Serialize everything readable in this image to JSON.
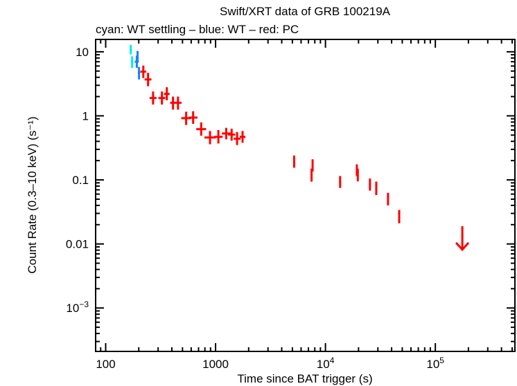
{
  "chart_data": {
    "type": "scatter",
    "title": "Swift/XRT data of GRB 100219A",
    "subtitle": "cyan: WT settling – blue: WT – red: PC",
    "xlabel": "Time since BAT trigger (s)",
    "ylabel": "Count Rate (0.3–10 keV) (s⁻¹)",
    "xscale": "log",
    "yscale": "log",
    "xlim": [
      81,
      530000
    ],
    "ylim": [
      0.00021,
      15.6
    ],
    "grid": false,
    "x_ticks": [
      {
        "value": 100,
        "label": "100"
      },
      {
        "value": 1000,
        "label": "1000"
      },
      {
        "value": 10000,
        "label": "10",
        "exp": "4"
      },
      {
        "value": 100000,
        "label": "10",
        "exp": "5"
      }
    ],
    "y_ticks": [
      {
        "value": 10,
        "label": "10"
      },
      {
        "value": 1,
        "label": "1"
      },
      {
        "value": 0.1,
        "label": "0.1"
      },
      {
        "value": 0.01,
        "label": "0.01"
      },
      {
        "value": 0.001,
        "label": "10",
        "exp": "−3"
      }
    ],
    "point_format": [
      "t",
      "t_min",
      "t_max",
      "rate",
      "rate_min",
      "rate_max"
    ],
    "series": [
      {
        "mode": "WT settling",
        "color": "#00e8ff",
        "points": [
          [
            169,
            165,
            173,
            10.8,
            9.1,
            12.8
          ],
          [
            174,
            170,
            178,
            6.9,
            5.6,
            8.5
          ]
        ]
      },
      {
        "mode": "WT",
        "color": "#1a7fff",
        "points": [
          [
            195,
            190,
            199,
            8.4,
            6.9,
            10.3
          ],
          [
            192,
            184,
            200,
            7.0,
            5.6,
            8.7
          ],
          [
            201,
            196,
            206,
            4.7,
            3.7,
            5.8
          ]
        ]
      },
      {
        "mode": "PC",
        "color": "#ff0000",
        "points": [
          [
            220,
            207,
            234,
            4.9,
            3.9,
            6.1
          ],
          [
            243,
            226,
            261,
            3.7,
            2.9,
            4.7
          ],
          [
            270,
            251,
            290,
            1.9,
            1.5,
            2.4
          ],
          [
            325,
            302,
            349,
            1.9,
            1.5,
            2.4
          ],
          [
            360,
            339,
            382,
            2.2,
            1.75,
            2.8
          ],
          [
            410,
            386,
            435,
            1.6,
            1.25,
            2.0
          ],
          [
            455,
            423,
            490,
            1.6,
            1.25,
            2.0
          ],
          [
            540,
            487,
            598,
            0.92,
            0.72,
            1.16
          ],
          [
            625,
            571,
            684,
            0.94,
            0.75,
            1.18
          ],
          [
            740,
            667,
            820,
            0.62,
            0.49,
            0.79
          ],
          [
            890,
            791,
            1000,
            0.46,
            0.36,
            0.58
          ],
          [
            1060,
            970,
            1160,
            0.47,
            0.37,
            0.6
          ],
          [
            1250,
            1140,
            1370,
            0.53,
            0.43,
            0.65
          ],
          [
            1400,
            1300,
            1510,
            0.51,
            0.41,
            0.63
          ],
          [
            1570,
            1460,
            1690,
            0.44,
            0.35,
            0.56
          ],
          [
            1760,
            1660,
            1870,
            0.47,
            0.38,
            0.58
          ],
          [
            5190,
            5110,
            5270,
            0.193,
            0.155,
            0.24
          ],
          [
            7470,
            7360,
            7580,
            0.12,
            0.094,
            0.15
          ],
          [
            7640,
            7520,
            7760,
            0.17,
            0.135,
            0.21
          ],
          [
            13600,
            13400,
            13800,
            0.093,
            0.075,
            0.115
          ],
          [
            19300,
            19000,
            19600,
            0.14,
            0.115,
            0.175
          ],
          [
            19700,
            19400,
            20000,
            0.12,
            0.095,
            0.15
          ],
          [
            25400,
            25000,
            25800,
            0.085,
            0.068,
            0.105
          ],
          [
            29000,
            28600,
            29400,
            0.074,
            0.058,
            0.094
          ],
          [
            37100,
            36500,
            37700,
            0.05,
            0.04,
            0.063
          ],
          [
            46900,
            46200,
            47600,
            0.027,
            0.021,
            0.034
          ]
        ],
        "upper_limits": [
          [
            176000,
            0.019
          ]
        ]
      }
    ]
  }
}
